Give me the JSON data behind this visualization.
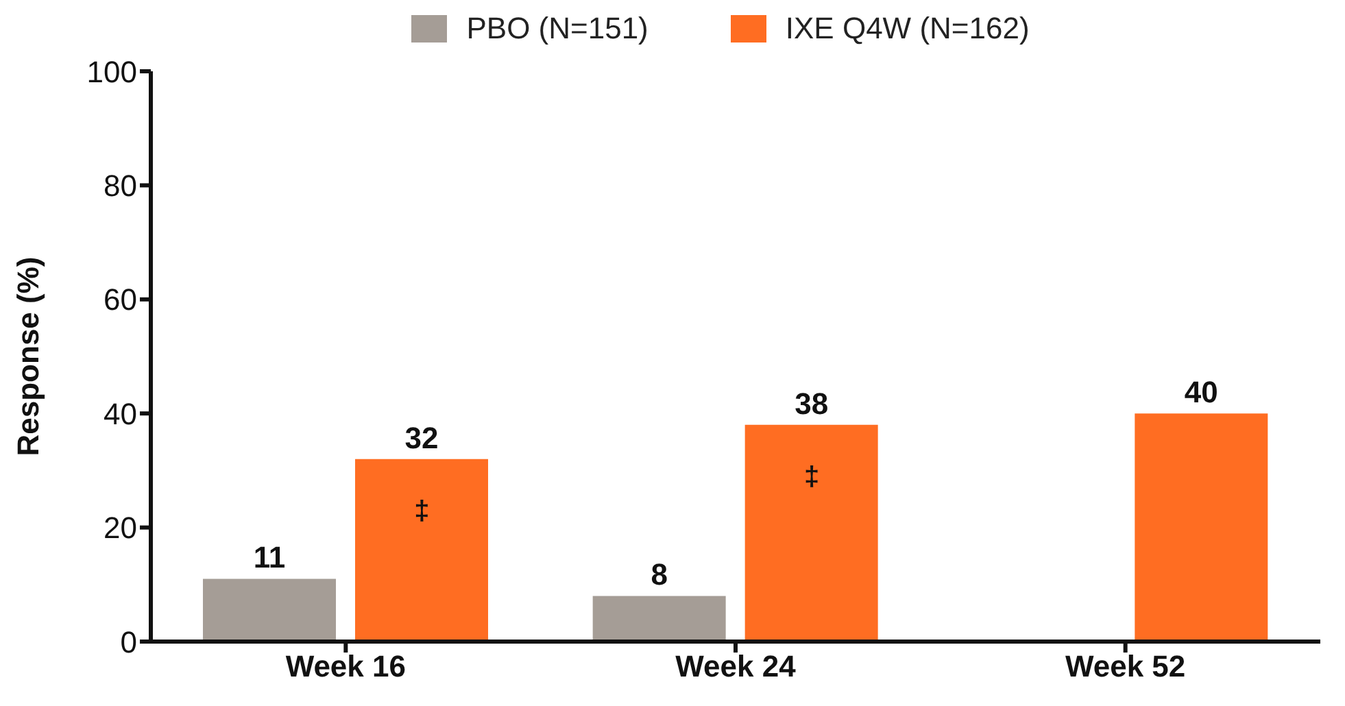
{
  "chart_data": {
    "type": "bar",
    "categories": [
      "Week 16",
      "Week 24",
      "Week 52"
    ],
    "series": [
      {
        "name": "PBO (N=151)",
        "color": "#a59d96",
        "values": [
          11,
          8,
          null
        ]
      },
      {
        "name": "IXE Q4W (N=162)",
        "color": "#ff6d22",
        "values": [
          32,
          38,
          40
        ]
      }
    ],
    "ylabel": "Response (%)",
    "ylim": [
      0,
      100
    ],
    "yticks": [
      0,
      20,
      40,
      60,
      80,
      100
    ],
    "grid": false,
    "legend": "top",
    "data_labels": true,
    "annotations": [
      "‡",
      "‡"
    ]
  }
}
